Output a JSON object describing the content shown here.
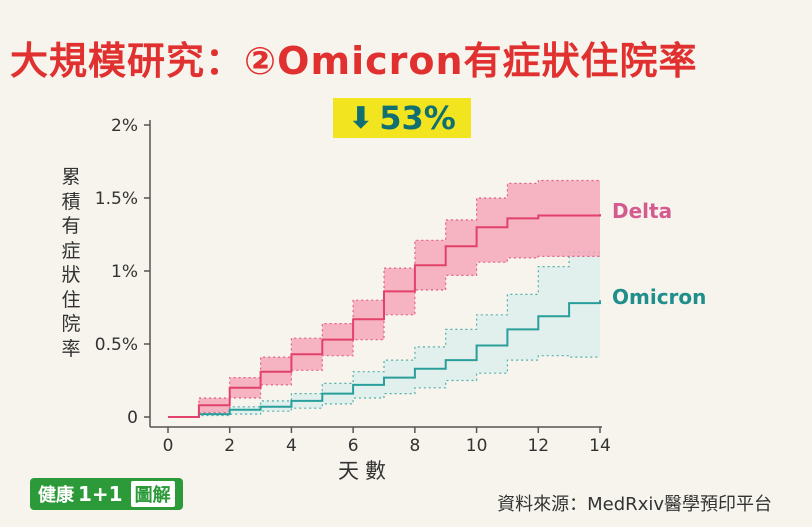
{
  "title": "大規模研究：②Omicron有症狀住院率",
  "reduction": {
    "arrow": "⬇",
    "value": "53%"
  },
  "source": "資料來源：MedRxiv醫學預印平台",
  "logo": {
    "text1": "健康",
    "text2": "1+1",
    "text3": "圖解"
  },
  "colors": {
    "delta": "#e2416b",
    "delta_fill": "#f6a8bb",
    "omicron": "#2a9e9b",
    "omicron_fill": "#dff0ec",
    "title": "#e0302f",
    "highlight": "#f2e51f"
  },
  "chart_data": {
    "type": "line",
    "step": true,
    "title": "",
    "xlabel": "天數",
    "ylabel": "累積有症狀住院率",
    "xlim": [
      0,
      14
    ],
    "ylim": [
      0,
      2
    ],
    "xticks": [
      0,
      2,
      4,
      6,
      8,
      10,
      12,
      14
    ],
    "yticks": [
      {
        "value": 0,
        "label": "0"
      },
      {
        "value": 0.5,
        "label": "0.5%"
      },
      {
        "value": 1,
        "label": "1%"
      },
      {
        "value": 1.5,
        "label": "1.5%"
      },
      {
        "value": 2,
        "label": "2%"
      }
    ],
    "x": [
      0,
      1,
      2,
      3,
      4,
      5,
      6,
      7,
      8,
      9,
      10,
      11,
      12,
      13,
      14
    ],
    "series": [
      {
        "name": "Delta",
        "values": [
          0,
          0.08,
          0.2,
          0.31,
          0.43,
          0.53,
          0.67,
          0.86,
          1.04,
          1.17,
          1.3,
          1.36,
          1.38,
          1.38,
          1.39
        ],
        "lower": [
          0,
          0.03,
          0.13,
          0.22,
          0.32,
          0.42,
          0.53,
          0.7,
          0.87,
          0.97,
          1.06,
          1.09,
          1.1,
          1.1,
          1.1
        ],
        "upper": [
          0,
          0.13,
          0.27,
          0.41,
          0.54,
          0.64,
          0.8,
          1.02,
          1.21,
          1.35,
          1.5,
          1.6,
          1.62,
          1.62,
          1.62
        ]
      },
      {
        "name": "Omicron",
        "values": [
          0,
          0.02,
          0.05,
          0.07,
          0.11,
          0.16,
          0.22,
          0.27,
          0.33,
          0.39,
          0.49,
          0.6,
          0.69,
          0.78,
          0.8
        ],
        "lower": [
          0,
          0.01,
          0.02,
          0.04,
          0.06,
          0.09,
          0.13,
          0.16,
          0.2,
          0.25,
          0.3,
          0.39,
          0.42,
          0.41,
          0.41
        ],
        "upper": [
          0,
          0.04,
          0.07,
          0.11,
          0.16,
          0.23,
          0.31,
          0.39,
          0.48,
          0.6,
          0.7,
          0.84,
          1.03,
          1.13,
          1.13
        ]
      }
    ]
  }
}
